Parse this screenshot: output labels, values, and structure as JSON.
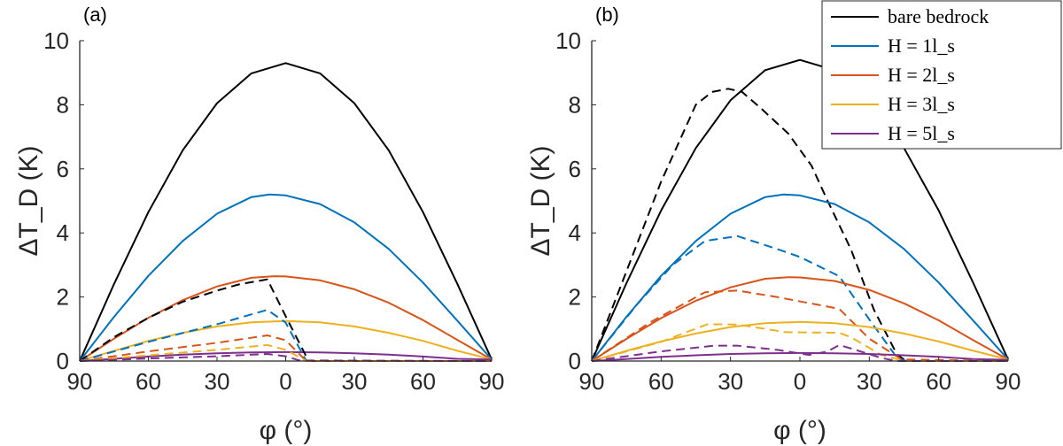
{
  "chart_data": [
    {
      "type": "line",
      "panel_label": "(a)",
      "xlabel": "φ (°)",
      "ylabel": "ΔT_D (K)",
      "xlim": [
        -90,
        90
      ],
      "ylim": [
        0,
        10
      ],
      "xticks": [
        -90,
        -60,
        -30,
        0,
        30,
        60,
        90
      ],
      "xtick_labels": [
        "90",
        "60",
        "30",
        "0",
        "30",
        "60",
        "90"
      ],
      "yticks": [
        0,
        2,
        4,
        6,
        8,
        10
      ],
      "ytick_labels": [
        "0",
        "2",
        "4",
        "6",
        "8",
        "10"
      ],
      "grid": false,
      "series": [
        {
          "name": "bare bedrock",
          "color": "#000000",
          "style": "solid",
          "points": [
            [
              -90,
              0
            ],
            [
              -75,
              2.41
            ],
            [
              -60,
              4.65
            ],
            [
              -45,
              6.58
            ],
            [
              -30,
              8.05
            ],
            [
              -15,
              8.98
            ],
            [
              0,
              9.3
            ],
            [
              15,
              8.98
            ],
            [
              30,
              8.05
            ],
            [
              45,
              6.58
            ],
            [
              60,
              4.65
            ],
            [
              75,
              2.41
            ],
            [
              90,
              0.05
            ]
          ]
        },
        {
          "name": "H = 1l_s",
          "color": "#0072BD",
          "style": "solid",
          "points": [
            [
              -90,
              0
            ],
            [
              -75,
              1.38
            ],
            [
              -60,
              2.66
            ],
            [
              -45,
              3.75
            ],
            [
              -30,
              4.6
            ],
            [
              -15,
              5.12
            ],
            [
              -7,
              5.2
            ],
            [
              0,
              5.17
            ],
            [
              15,
              4.9
            ],
            [
              30,
              4.33
            ],
            [
              45,
              3.5
            ],
            [
              60,
              2.45
            ],
            [
              75,
              1.26
            ],
            [
              90,
              0.05
            ]
          ]
        },
        {
          "name": "H = 2l_s",
          "color": "#D95319",
          "style": "solid",
          "points": [
            [
              -90,
              0
            ],
            [
              -75,
              0.7
            ],
            [
              -60,
              1.35
            ],
            [
              -45,
              1.9
            ],
            [
              -30,
              2.33
            ],
            [
              -15,
              2.6
            ],
            [
              -5,
              2.65
            ],
            [
              0,
              2.64
            ],
            [
              15,
              2.52
            ],
            [
              30,
              2.24
            ],
            [
              45,
              1.82
            ],
            [
              60,
              1.28
            ],
            [
              75,
              0.66
            ],
            [
              90,
              0.05
            ]
          ]
        },
        {
          "name": "H = 3l_s",
          "color": "#EDB120",
          "style": "solid",
          "points": [
            [
              -90,
              0
            ],
            [
              -75,
              0.32
            ],
            [
              -60,
              0.63
            ],
            [
              -45,
              0.88
            ],
            [
              -30,
              1.08
            ],
            [
              -15,
              1.21
            ],
            [
              0,
              1.25
            ],
            [
              15,
              1.21
            ],
            [
              30,
              1.08
            ],
            [
              45,
              0.88
            ],
            [
              60,
              0.63
            ],
            [
              75,
              0.32
            ],
            [
              90,
              0.05
            ]
          ]
        },
        {
          "name": "H = 5l_s",
          "color": "#7E2F8E",
          "style": "solid",
          "points": [
            [
              -90,
              0
            ],
            [
              -75,
              0.07
            ],
            [
              -60,
              0.14
            ],
            [
              -45,
              0.2
            ],
            [
              -30,
              0.24
            ],
            [
              -15,
              0.27
            ],
            [
              0,
              0.28
            ],
            [
              15,
              0.27
            ],
            [
              30,
              0.24
            ],
            [
              45,
              0.2
            ],
            [
              60,
              0.14
            ],
            [
              75,
              0.07
            ],
            [
              90,
              0.05
            ]
          ]
        },
        {
          "color": "#000000",
          "style": "dashed",
          "points": [
            [
              -90,
              0
            ],
            [
              -75,
              0.75
            ],
            [
              -60,
              1.35
            ],
            [
              -45,
              1.85
            ],
            [
              -30,
              2.2
            ],
            [
              -20,
              2.4
            ],
            [
              -8,
              2.55
            ],
            [
              0,
              1.4
            ],
            [
              10,
              0
            ],
            [
              90,
              0
            ]
          ]
        },
        {
          "color": "#0072BD",
          "style": "dashed",
          "points": [
            [
              -90,
              0
            ],
            [
              -60,
              0.6
            ],
            [
              -30,
              1.15
            ],
            [
              -8,
              1.6
            ],
            [
              0,
              1.2
            ],
            [
              9,
              0
            ],
            [
              90,
              0
            ]
          ]
        },
        {
          "color": "#D95319",
          "style": "dashed",
          "points": [
            [
              -90,
              0
            ],
            [
              -60,
              0.3
            ],
            [
              -30,
              0.57
            ],
            [
              -8,
              0.8
            ],
            [
              0,
              0.65
            ],
            [
              9,
              0
            ],
            [
              90,
              0
            ]
          ]
        },
        {
          "color": "#EDB120",
          "style": "dashed",
          "points": [
            [
              -90,
              0
            ],
            [
              -60,
              0.18
            ],
            [
              -30,
              0.35
            ],
            [
              -8,
              0.5
            ],
            [
              0,
              0.35
            ],
            [
              9,
              0
            ],
            [
              90,
              0
            ]
          ]
        },
        {
          "color": "#7E2F8E",
          "style": "dashed",
          "points": [
            [
              -90,
              0
            ],
            [
              -60,
              0.08
            ],
            [
              -30,
              0.15
            ],
            [
              -8,
              0.22
            ],
            [
              0,
              0.15
            ],
            [
              6,
              0.02
            ],
            [
              90,
              0
            ]
          ]
        }
      ]
    },
    {
      "type": "line",
      "panel_label": "(b)",
      "xlabel": "φ (°)",
      "ylabel": "ΔT_D (K)",
      "xlim": [
        -90,
        90
      ],
      "ylim": [
        0,
        10
      ],
      "xticks": [
        -90,
        -60,
        -30,
        0,
        30,
        60,
        90
      ],
      "xtick_labels": [
        "90",
        "60",
        "30",
        "0",
        "30",
        "60",
        "90"
      ],
      "yticks": [
        0,
        2,
        4,
        6,
        8,
        10
      ],
      "ytick_labels": [
        "0",
        "2",
        "4",
        "6",
        "8",
        "10"
      ],
      "grid": false,
      "legend": {
        "location": "top-right",
        "entries": [
          "bare bedrock",
          "H = 1l_s",
          "H = 2l_s",
          "H = 3l_s",
          "H = 5l_s"
        ]
      },
      "series": [
        {
          "name": "bare bedrock",
          "color": "#000000",
          "style": "solid",
          "points": [
            [
              -90,
              0
            ],
            [
              -75,
              2.43
            ],
            [
              -60,
              4.7
            ],
            [
              -45,
              6.65
            ],
            [
              -30,
              8.14
            ],
            [
              -15,
              9.08
            ],
            [
              0,
              9.4
            ],
            [
              15,
              9.08
            ],
            [
              30,
              8.14
            ],
            [
              45,
              6.65
            ],
            [
              60,
              4.7
            ],
            [
              75,
              2.43
            ],
            [
              90,
              0.05
            ]
          ]
        },
        {
          "color": "#000000",
          "style": "dashed",
          "points": [
            [
              -90,
              0
            ],
            [
              -75,
              2.8
            ],
            [
              -60,
              5.6
            ],
            [
              -45,
              8.0
            ],
            [
              -38,
              8.4
            ],
            [
              -31,
              8.5
            ],
            [
              -25,
              8.4
            ],
            [
              -17,
              7.9
            ],
            [
              -5,
              7.1
            ],
            [
              5,
              6.1
            ],
            [
              12,
              5.0
            ],
            [
              22,
              3.5
            ],
            [
              32,
              1.6
            ],
            [
              42,
              0.2
            ],
            [
              46,
              0
            ],
            [
              90,
              0
            ]
          ]
        },
        {
          "name": "H = 1l_s",
          "color": "#0072BD",
          "style": "solid",
          "points": [
            [
              -90,
              0
            ],
            [
              -75,
              1.38
            ],
            [
              -60,
              2.66
            ],
            [
              -45,
              3.75
            ],
            [
              -30,
              4.6
            ],
            [
              -15,
              5.12
            ],
            [
              -7,
              5.2
            ],
            [
              0,
              5.17
            ],
            [
              15,
              4.9
            ],
            [
              30,
              4.33
            ],
            [
              45,
              3.5
            ],
            [
              60,
              2.45
            ],
            [
              75,
              1.26
            ],
            [
              90,
              0.05
            ]
          ]
        },
        {
          "color": "#0072BD",
          "style": "dashed",
          "points": [
            [
              -90,
              0
            ],
            [
              -70,
              1.8
            ],
            [
              -55,
              3.0
            ],
            [
              -41,
              3.75
            ],
            [
              -27,
              3.9
            ],
            [
              -10,
              3.5
            ],
            [
              0,
              3.25
            ],
            [
              17,
              2.65
            ],
            [
              30,
              1.3
            ],
            [
              42,
              0.1
            ],
            [
              46,
              0
            ],
            [
              90,
              0
            ]
          ]
        },
        {
          "name": "H = 2l_s",
          "color": "#D95319",
          "style": "solid",
          "points": [
            [
              -90,
              0
            ],
            [
              -75,
              0.69
            ],
            [
              -60,
              1.34
            ],
            [
              -45,
              1.88
            ],
            [
              -30,
              2.3
            ],
            [
              -15,
              2.57
            ],
            [
              -5,
              2.62
            ],
            [
              0,
              2.61
            ],
            [
              15,
              2.5
            ],
            [
              30,
              2.22
            ],
            [
              45,
              1.8
            ],
            [
              60,
              1.27
            ],
            [
              75,
              0.65
            ],
            [
              90,
              0.05
            ]
          ]
        },
        {
          "color": "#D95319",
          "style": "dashed",
          "points": [
            [
              -90,
              0
            ],
            [
              -65,
              1.2
            ],
            [
              -41,
              2.15
            ],
            [
              -27,
              2.2
            ],
            [
              -10,
              2.0
            ],
            [
              17,
              1.63
            ],
            [
              30,
              0.7
            ],
            [
              44,
              0.05
            ],
            [
              90,
              0
            ]
          ]
        },
        {
          "name": "H = 3l_s",
          "color": "#EDB120",
          "style": "solid",
          "points": [
            [
              -90,
              0
            ],
            [
              -75,
              0.32
            ],
            [
              -60,
              0.61
            ],
            [
              -45,
              0.86
            ],
            [
              -30,
              1.06
            ],
            [
              -15,
              1.18
            ],
            [
              0,
              1.22
            ],
            [
              15,
              1.18
            ],
            [
              30,
              1.06
            ],
            [
              45,
              0.86
            ],
            [
              60,
              0.61
            ],
            [
              75,
              0.32
            ],
            [
              90,
              0.05
            ]
          ]
        },
        {
          "color": "#EDB120",
          "style": "dashed",
          "points": [
            [
              -90,
              0
            ],
            [
              -60,
              0.6
            ],
            [
              -40,
              1.15
            ],
            [
              -27,
              1.14
            ],
            [
              -6,
              0.9
            ],
            [
              17,
              0.88
            ],
            [
              22,
              0.75
            ],
            [
              35,
              0.2
            ],
            [
              45,
              0
            ],
            [
              90,
              0
            ]
          ]
        },
        {
          "name": "H = 5l_s",
          "color": "#7E2F8E",
          "style": "solid",
          "points": [
            [
              -90,
              0
            ],
            [
              -75,
              0.06
            ],
            [
              -60,
              0.13
            ],
            [
              -45,
              0.18
            ],
            [
              -30,
              0.22
            ],
            [
              -15,
              0.24
            ],
            [
              0,
              0.25
            ],
            [
              15,
              0.24
            ],
            [
              30,
              0.22
            ],
            [
              45,
              0.18
            ],
            [
              60,
              0.13
            ],
            [
              75,
              0.06
            ],
            [
              90,
              0.04
            ]
          ]
        },
        {
          "color": "#7E2F8E",
          "style": "dashed",
          "points": [
            [
              -90,
              0
            ],
            [
              -60,
              0.3
            ],
            [
              -37,
              0.48
            ],
            [
              -27,
              0.48
            ],
            [
              -10,
              0.35
            ],
            [
              4,
              0.19
            ],
            [
              12,
              0.3
            ],
            [
              17,
              0.5
            ],
            [
              24,
              0.35
            ],
            [
              35,
              0.1
            ],
            [
              42,
              0
            ],
            [
              90,
              0
            ]
          ]
        }
      ]
    }
  ]
}
